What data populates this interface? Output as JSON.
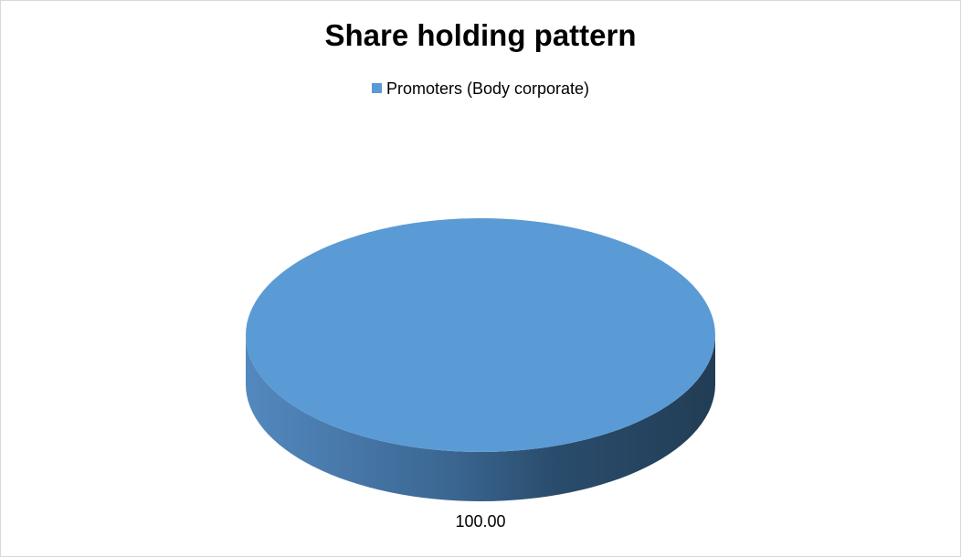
{
  "chart_data": {
    "type": "pie",
    "title": "Share holding pattern",
    "style": "3d",
    "legend_position": "top",
    "categories": [
      "Promoters (Body corporate)"
    ],
    "values": [
      100.0
    ],
    "data_labels": [
      "100.00"
    ],
    "colors": [
      "#5b9bd5"
    ]
  }
}
